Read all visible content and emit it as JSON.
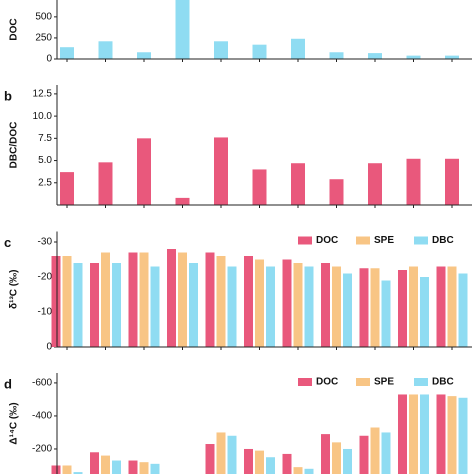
{
  "chart_data": [
    {
      "type": "bar",
      "ylabel": "DOC",
      "categories": [
        null,
        null,
        null,
        null,
        null,
        null,
        null,
        null,
        null,
        null,
        null
      ],
      "values": [
        140,
        210,
        80,
        700,
        210,
        170,
        240,
        80,
        70,
        40,
        40
      ],
      "color": "#8fdcf2",
      "ylim": [
        0,
        700
      ],
      "yticks": [
        0,
        250,
        500
      ]
    },
    {
      "type": "bar",
      "panel_label": "b",
      "ylabel": "DBC/DOC",
      "categories": [
        null,
        null,
        null,
        null,
        null,
        null,
        null,
        null,
        null,
        null,
        null
      ],
      "values": [
        3.7,
        4.8,
        7.5,
        0.8,
        7.6,
        4.0,
        4.7,
        2.9,
        4.7,
        5.2,
        5.2
      ],
      "color": "#e9587c",
      "ylim": [
        0,
        13.5
      ],
      "yticks": [
        2.5,
        {
          "value": 5,
          "label": "5.0"
        },
        7.5,
        {
          "value": 10,
          "label": "10.0"
        },
        12.5
      ]
    },
    {
      "type": "grouped_bar",
      "panel_label": "c",
      "ylabel": "δ¹³C (‰)",
      "categories": [
        null,
        null,
        null,
        null,
        null,
        null,
        null,
        null,
        null,
        null,
        null
      ],
      "series": [
        {
          "name": "DOC",
          "color": "#e9587c",
          "values": [
            -26,
            -24,
            -27,
            -28,
            -27,
            -26,
            -25,
            -24,
            -22.5,
            -22,
            -23
          ]
        },
        {
          "name": "SPE",
          "color": "#f8c585",
          "values": [
            -26,
            -27,
            -27,
            -27,
            -26,
            -25,
            -24,
            -23,
            -22.5,
            -23,
            -23
          ]
        },
        {
          "name": "DBC",
          "color": "#8fdcf2",
          "values": [
            -24,
            -24,
            -23,
            -24,
            -23,
            -23,
            -23,
            -21,
            -19,
            -20,
            -21
          ]
        }
      ],
      "ylim": [
        0,
        -33
      ],
      "yticks": [
        -30,
        -20,
        -10,
        0
      ],
      "legend": "upper right"
    },
    {
      "type": "grouped_bar",
      "panel_label": "d",
      "ylabel": "Δ¹⁴C (‰)",
      "categories": [
        null,
        null,
        null,
        null,
        null,
        null,
        null,
        null,
        null,
        null,
        null
      ],
      "series": [
        {
          "name": "DOC",
          "color": "#e9587c",
          "values": [
            -100,
            -180,
            -130,
            -20,
            -230,
            -200,
            -170,
            -290,
            -280,
            -530,
            -530
          ]
        },
        {
          "name": "SPE",
          "color": "#f8c585",
          "values": [
            -100,
            -160,
            -120,
            -40,
            -300,
            -190,
            -90,
            -240,
            -330,
            -530,
            -520
          ]
        },
        {
          "name": "DBC",
          "color": "#8fdcf2",
          "values": [
            -60,
            -130,
            -110,
            -30,
            -280,
            -150,
            -80,
            -200,
            -300,
            -530,
            -510
          ]
        }
      ],
      "ylim": [
        0,
        -660
      ],
      "yticks": [
        -600,
        -400,
        -200
      ],
      "legend": "upper right"
    }
  ]
}
